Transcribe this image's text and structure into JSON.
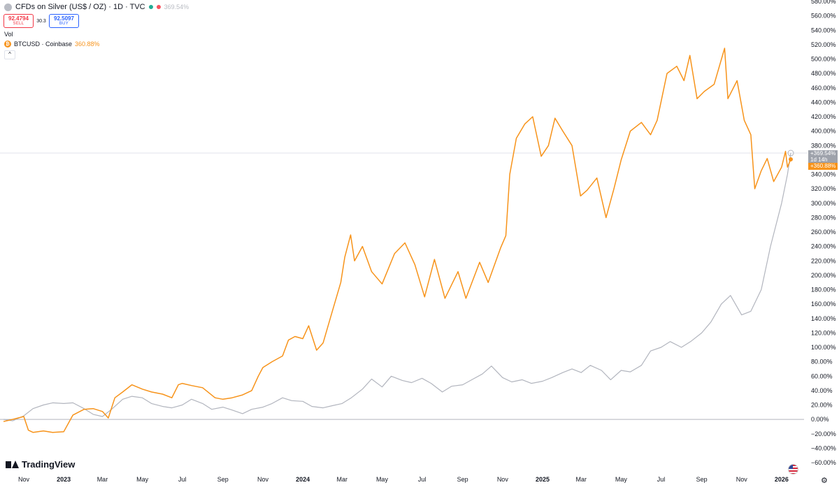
{
  "header": {
    "title": "CFDs on Silver (US$ / OZ) · 1D · TVC",
    "title_pct": "369.54%",
    "status_colors": [
      "#22ab94",
      "#f7525f"
    ],
    "sell_price": "92.4794",
    "sell_label": "SELL",
    "spread": "30.3",
    "buy_price": "92.5097",
    "buy_label": "BUY",
    "vol_label": "Vol",
    "btc_label": "BTCUSD · Coinbase",
    "btc_pct": "360.88%",
    "collapse_icon": "chevron-up-icon"
  },
  "logo": {
    "text": "TradingView"
  },
  "badges": {
    "silver_pct": "+369.54%",
    "countdown": "1d 14h",
    "btc_pct": "+360.88%"
  },
  "colors": {
    "silver": "#b2b5be",
    "btc": "#f7931a",
    "zero_line": "#b2b5be"
  },
  "chart_data": {
    "type": "line",
    "title": "",
    "y_unit": "%",
    "ylim": [
      -60,
      580
    ],
    "y_ticks": [
      580,
      560,
      540,
      520,
      500,
      480,
      460,
      440,
      420,
      400,
      380,
      360,
      340,
      320,
      300,
      280,
      260,
      240,
      220,
      200,
      180,
      160,
      140,
      120,
      100,
      80,
      60,
      40,
      20,
      0,
      -20,
      -40,
      -60
    ],
    "y_tick_labels": [
      "580.00%",
      "560.00%",
      "540.00%",
      "520.00%",
      "500.00%",
      "480.00%",
      "460.00%",
      "440.00%",
      "420.00%",
      "400.00%",
      "380.00%",
      "360.00%",
      "340.00%",
      "320.00%",
      "300.00%",
      "280.00%",
      "260.00%",
      "240.00%",
      "220.00%",
      "200.00%",
      "180.00%",
      "160.00%",
      "140.00%",
      "120.00%",
      "100.00%",
      "80.00%",
      "60.00%",
      "40.00%",
      "20.00%",
      "0.00%",
      "−20.00%",
      "−40.00%",
      "−60.00%"
    ],
    "x_tick_labels": [
      {
        "label": "Nov",
        "date": "2022-11-01",
        "bold": false
      },
      {
        "label": "2023",
        "date": "2023-01-01",
        "bold": true
      },
      {
        "label": "Mar",
        "date": "2023-03-01",
        "bold": false
      },
      {
        "label": "May",
        "date": "2023-05-01",
        "bold": false
      },
      {
        "label": "Jul",
        "date": "2023-07-01",
        "bold": false
      },
      {
        "label": "Sep",
        "date": "2023-09-01",
        "bold": false
      },
      {
        "label": "Nov",
        "date": "2023-11-01",
        "bold": false
      },
      {
        "label": "2024",
        "date": "2024-01-01",
        "bold": true
      },
      {
        "label": "Mar",
        "date": "2024-03-01",
        "bold": false
      },
      {
        "label": "May",
        "date": "2024-05-01",
        "bold": false
      },
      {
        "label": "Jul",
        "date": "2024-07-01",
        "bold": false
      },
      {
        "label": "Sep",
        "date": "2024-09-01",
        "bold": false
      },
      {
        "label": "Nov",
        "date": "2024-11-01",
        "bold": false
      },
      {
        "label": "2025",
        "date": "2025-01-01",
        "bold": true
      },
      {
        "label": "Mar",
        "date": "2025-03-01",
        "bold": false
      },
      {
        "label": "May",
        "date": "2025-05-01",
        "bold": false
      },
      {
        "label": "Jul",
        "date": "2025-07-01",
        "bold": false
      },
      {
        "label": "Sep",
        "date": "2025-09-01",
        "bold": false
      },
      {
        "label": "Nov",
        "date": "2025-11-01",
        "bold": false
      },
      {
        "label": "2026",
        "date": "2026-01-01",
        "bold": true
      }
    ],
    "series": [
      {
        "name": "CFDs on Silver (US$ / OZ)",
        "color": "#b2b5be",
        "points": [
          [
            "2022-10-01",
            0
          ],
          [
            "2022-10-15",
            -2
          ],
          [
            "2022-11-01",
            5
          ],
          [
            "2022-11-15",
            15
          ],
          [
            "2022-12-01",
            20
          ],
          [
            "2022-12-15",
            23
          ],
          [
            "2023-01-01",
            22
          ],
          [
            "2023-01-15",
            23
          ],
          [
            "2023-02-01",
            15
          ],
          [
            "2023-02-15",
            7
          ],
          [
            "2023-03-01",
            4
          ],
          [
            "2023-03-15",
            14
          ],
          [
            "2023-04-01",
            28
          ],
          [
            "2023-04-15",
            32
          ],
          [
            "2023-05-01",
            30
          ],
          [
            "2023-05-15",
            22
          ],
          [
            "2023-06-01",
            18
          ],
          [
            "2023-06-15",
            16
          ],
          [
            "2023-07-01",
            20
          ],
          [
            "2023-07-15",
            28
          ],
          [
            "2023-08-01",
            22
          ],
          [
            "2023-08-15",
            14
          ],
          [
            "2023-09-01",
            17
          ],
          [
            "2023-09-15",
            13
          ],
          [
            "2023-10-01",
            8
          ],
          [
            "2023-10-15",
            14
          ],
          [
            "2023-11-01",
            17
          ],
          [
            "2023-11-15",
            22
          ],
          [
            "2023-12-01",
            30
          ],
          [
            "2023-12-15",
            26
          ],
          [
            "2024-01-01",
            25
          ],
          [
            "2024-01-15",
            18
          ],
          [
            "2024-02-01",
            16
          ],
          [
            "2024-02-15",
            19
          ],
          [
            "2024-03-01",
            22
          ],
          [
            "2024-03-15",
            30
          ],
          [
            "2024-04-01",
            42
          ],
          [
            "2024-04-15",
            56
          ],
          [
            "2024-05-01",
            45
          ],
          [
            "2024-05-15",
            60
          ],
          [
            "2024-06-01",
            54
          ],
          [
            "2024-06-15",
            51
          ],
          [
            "2024-07-01",
            57
          ],
          [
            "2024-07-15",
            50
          ],
          [
            "2024-08-01",
            38
          ],
          [
            "2024-08-15",
            46
          ],
          [
            "2024-09-01",
            48
          ],
          [
            "2024-09-15",
            55
          ],
          [
            "2024-10-01",
            63
          ],
          [
            "2024-10-15",
            74
          ],
          [
            "2024-11-01",
            58
          ],
          [
            "2024-11-15",
            52
          ],
          [
            "2024-12-01",
            55
          ],
          [
            "2024-12-15",
            50
          ],
          [
            "2025-01-01",
            53
          ],
          [
            "2025-01-15",
            58
          ],
          [
            "2025-02-01",
            65
          ],
          [
            "2025-02-15",
            70
          ],
          [
            "2025-03-01",
            65
          ],
          [
            "2025-03-15",
            75
          ],
          [
            "2025-04-01",
            68
          ],
          [
            "2025-04-15",
            55
          ],
          [
            "2025-05-01",
            68
          ],
          [
            "2025-05-15",
            66
          ],
          [
            "2025-06-01",
            75
          ],
          [
            "2025-06-15",
            95
          ],
          [
            "2025-07-01",
            100
          ],
          [
            "2025-07-15",
            108
          ],
          [
            "2025-08-01",
            100
          ],
          [
            "2025-08-15",
            108
          ],
          [
            "2025-09-01",
            120
          ],
          [
            "2025-09-15",
            135
          ],
          [
            "2025-10-01",
            160
          ],
          [
            "2025-10-15",
            172
          ],
          [
            "2025-11-01",
            145
          ],
          [
            "2025-11-15",
            150
          ],
          [
            "2025-12-01",
            180
          ],
          [
            "2025-12-15",
            240
          ],
          [
            "2026-01-01",
            300
          ],
          [
            "2026-01-10",
            340
          ],
          [
            "2026-01-15",
            369.54
          ]
        ]
      },
      {
        "name": "BTCUSD · Coinbase",
        "color": "#f7931a",
        "points": [
          [
            "2022-10-01",
            -3
          ],
          [
            "2022-10-15",
            0
          ],
          [
            "2022-11-01",
            4
          ],
          [
            "2022-11-08",
            -15
          ],
          [
            "2022-11-15",
            -18
          ],
          [
            "2022-12-01",
            -16
          ],
          [
            "2022-12-15",
            -18
          ],
          [
            "2023-01-01",
            -17
          ],
          [
            "2023-01-15",
            6
          ],
          [
            "2023-02-01",
            14
          ],
          [
            "2023-02-15",
            15
          ],
          [
            "2023-03-01",
            11
          ],
          [
            "2023-03-10",
            2
          ],
          [
            "2023-03-20",
            30
          ],
          [
            "2023-04-01",
            38
          ],
          [
            "2023-04-15",
            48
          ],
          [
            "2023-05-01",
            42
          ],
          [
            "2023-05-15",
            38
          ],
          [
            "2023-06-01",
            35
          ],
          [
            "2023-06-15",
            30
          ],
          [
            "2023-06-25",
            48
          ],
          [
            "2023-07-01",
            50
          ],
          [
            "2023-07-15",
            47
          ],
          [
            "2023-08-01",
            44
          ],
          [
            "2023-08-20",
            30
          ],
          [
            "2023-09-01",
            28
          ],
          [
            "2023-09-15",
            30
          ],
          [
            "2023-10-01",
            34
          ],
          [
            "2023-10-15",
            40
          ],
          [
            "2023-10-25",
            60
          ],
          [
            "2023-11-01",
            72
          ],
          [
            "2023-11-15",
            80
          ],
          [
            "2023-12-01",
            88
          ],
          [
            "2023-12-10",
            110
          ],
          [
            "2023-12-20",
            115
          ],
          [
            "2024-01-01",
            112
          ],
          [
            "2024-01-10",
            130
          ],
          [
            "2024-01-22",
            96
          ],
          [
            "2024-02-01",
            106
          ],
          [
            "2024-02-15",
            150
          ],
          [
            "2024-02-28",
            190
          ],
          [
            "2024-03-05",
            225
          ],
          [
            "2024-03-14",
            256
          ],
          [
            "2024-03-20",
            220
          ],
          [
            "2024-04-01",
            240
          ],
          [
            "2024-04-15",
            205
          ],
          [
            "2024-05-01",
            188
          ],
          [
            "2024-05-20",
            230
          ],
          [
            "2024-06-05",
            245
          ],
          [
            "2024-06-20",
            215
          ],
          [
            "2024-07-05",
            170
          ],
          [
            "2024-07-20",
            222
          ],
          [
            "2024-08-05",
            168
          ],
          [
            "2024-08-25",
            205
          ],
          [
            "2024-09-06",
            168
          ],
          [
            "2024-09-27",
            218
          ],
          [
            "2024-10-10",
            190
          ],
          [
            "2024-10-29",
            238
          ],
          [
            "2024-11-06",
            255
          ],
          [
            "2024-11-12",
            340
          ],
          [
            "2024-11-22",
            390
          ],
          [
            "2024-12-05",
            410
          ],
          [
            "2024-12-17",
            420
          ],
          [
            "2024-12-30",
            365
          ],
          [
            "2025-01-10",
            380
          ],
          [
            "2025-01-20",
            418
          ],
          [
            "2025-02-01",
            400
          ],
          [
            "2025-02-15",
            380
          ],
          [
            "2025-02-28",
            310
          ],
          [
            "2025-03-10",
            318
          ],
          [
            "2025-03-25",
            335
          ],
          [
            "2025-04-08",
            280
          ],
          [
            "2025-04-20",
            320
          ],
          [
            "2025-05-01",
            360
          ],
          [
            "2025-05-15",
            400
          ],
          [
            "2025-06-01",
            412
          ],
          [
            "2025-06-15",
            395
          ],
          [
            "2025-06-25",
            415
          ],
          [
            "2025-07-10",
            480
          ],
          [
            "2025-07-25",
            490
          ],
          [
            "2025-08-05",
            470
          ],
          [
            "2025-08-14",
            505
          ],
          [
            "2025-08-25",
            445
          ],
          [
            "2025-09-05",
            455
          ],
          [
            "2025-09-20",
            465
          ],
          [
            "2025-10-06",
            515
          ],
          [
            "2025-10-11",
            445
          ],
          [
            "2025-10-25",
            470
          ],
          [
            "2025-11-05",
            415
          ],
          [
            "2025-11-15",
            395
          ],
          [
            "2025-11-21",
            320
          ],
          [
            "2025-12-01",
            345
          ],
          [
            "2025-12-10",
            362
          ],
          [
            "2025-12-20",
            330
          ],
          [
            "2026-01-01",
            350
          ],
          [
            "2026-01-07",
            372
          ],
          [
            "2026-01-10",
            350
          ],
          [
            "2026-01-15",
            360.88
          ]
        ]
      }
    ],
    "current_value_line": 369.54
  }
}
